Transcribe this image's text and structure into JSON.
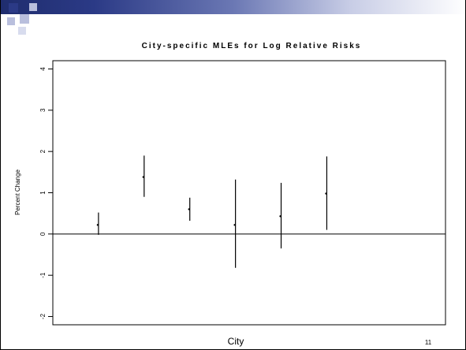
{
  "slide": {
    "page_number": "11",
    "colors": {
      "bar_dark": "#1f2d6e",
      "bar_mid": "#6b78b4",
      "bar_light": "#c8cde6",
      "square_light": "#b9bfdd",
      "square_dark": "#2b3a86"
    }
  },
  "chart_data": {
    "type": "scatter",
    "title": "City-specific MLEs for Log Relative Risks",
    "xlabel": "City",
    "ylabel": "Percent Change",
    "ylim": [
      -2.2,
      4.2
    ],
    "xlim": [
      0,
      8.6
    ],
    "yticks": [
      "-2",
      "-1",
      "0",
      "1",
      "2",
      "3",
      "4"
    ],
    "reference_line": 0,
    "grid": false,
    "legend": "none",
    "points": [
      {
        "x": 1,
        "y": 0.22,
        "low": -0.02,
        "high": 0.52
      },
      {
        "x": 2,
        "y": 1.38,
        "low": 0.9,
        "high": 1.9
      },
      {
        "x": 3,
        "y": 0.6,
        "low": 0.32,
        "high": 0.88
      },
      {
        "x": 4,
        "y": 0.22,
        "low": -0.82,
        "high": 1.32
      },
      {
        "x": 5,
        "y": 0.43,
        "low": -0.35,
        "high": 1.24
      },
      {
        "x": 6,
        "y": 0.98,
        "low": 0.1,
        "high": 1.88
      }
    ]
  }
}
